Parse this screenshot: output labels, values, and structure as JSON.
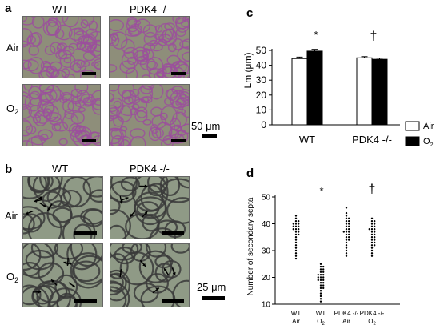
{
  "panel_a": {
    "letter": "a",
    "col_headers": [
      "WT",
      "PDK4 -/-"
    ],
    "row_labels": [
      {
        "main": "Air",
        "sub": ""
      },
      {
        "main": "O",
        "sub": "2"
      }
    ],
    "scale_label": "50 μm",
    "tissue_color": "#9b4f9c",
    "background_color": "#8e8e7a"
  },
  "panel_b": {
    "letter": "b",
    "col_headers": [
      "WT",
      "PDK4 -/-"
    ],
    "row_labels": [
      {
        "main": "Air",
        "sub": ""
      },
      {
        "main": "O",
        "sub": "2"
      }
    ],
    "scale_label": "25 μm",
    "tissue_color": "#3a3a3a",
    "background_color": "#8f9a86"
  },
  "panel_c": {
    "letter": "c",
    "significance": [
      "*",
      "†"
    ]
  },
  "panel_d": {
    "letter": "d",
    "significance": [
      "*",
      "†"
    ]
  },
  "chart_data": [
    {
      "type": "bar",
      "title": "",
      "ylabel": "Lm (μm)",
      "xlabel": "",
      "categories": [
        "WT",
        "PDK4 -/-"
      ],
      "series": [
        {
          "name": "Air",
          "values": [
            44.5,
            45.0
          ],
          "errors": [
            1.0,
            0.8
          ],
          "color": "#ffffff"
        },
        {
          "name": "O2",
          "values": [
            49.5,
            44.0
          ],
          "errors": [
            1.2,
            0.8
          ],
          "color": "#000000"
        }
      ],
      "legend_labels": [
        {
          "main": "Air",
          "sub": ""
        },
        {
          "main": "O",
          "sub": "2"
        }
      ],
      "ylim": [
        0,
        50
      ],
      "yticks": [
        0,
        10,
        20,
        30,
        40,
        50
      ],
      "legend": "right",
      "grid": false
    },
    {
      "type": "scatter",
      "title": "",
      "ylabel": "Number of secondary septa",
      "xlabel": "",
      "groups": [
        {
          "label1": "WT",
          "label2": "Air",
          "values": [
            43,
            42,
            41,
            41,
            40,
            40,
            40,
            39,
            39,
            39,
            38,
            38,
            38,
            37,
            37,
            36,
            36,
            35,
            34,
            33,
            32,
            31,
            30,
            29,
            28,
            27
          ]
        },
        {
          "label1": "WT",
          "label2": "O",
          "label2_sub": "2",
          "values": [
            25,
            24,
            24,
            23,
            23,
            22,
            22,
            21,
            21,
            21,
            20,
            20,
            20,
            19,
            19,
            19,
            18,
            18,
            17,
            17,
            16,
            16,
            15,
            14,
            13,
            12,
            11
          ]
        },
        {
          "label1": "PDK4 -/-",
          "label2": "Air",
          "values": [
            46,
            44,
            43,
            42,
            42,
            41,
            41,
            40,
            40,
            39,
            39,
            38,
            38,
            37,
            37,
            37,
            36,
            36,
            35,
            35,
            34,
            34,
            33,
            32,
            31,
            30,
            29,
            28
          ]
        },
        {
          "label1": "PDK4 -/-",
          "label2": "O",
          "label2_sub": "2",
          "values": [
            42,
            41,
            41,
            40,
            40,
            39,
            39,
            38,
            38,
            38,
            37,
            37,
            36,
            36,
            35,
            35,
            34,
            34,
            33,
            33,
            32,
            32,
            31,
            30,
            29,
            28
          ]
        }
      ],
      "ylim": [
        10,
        50
      ],
      "yticks": [
        10,
        20,
        30,
        40,
        50
      ],
      "grid": false
    }
  ]
}
